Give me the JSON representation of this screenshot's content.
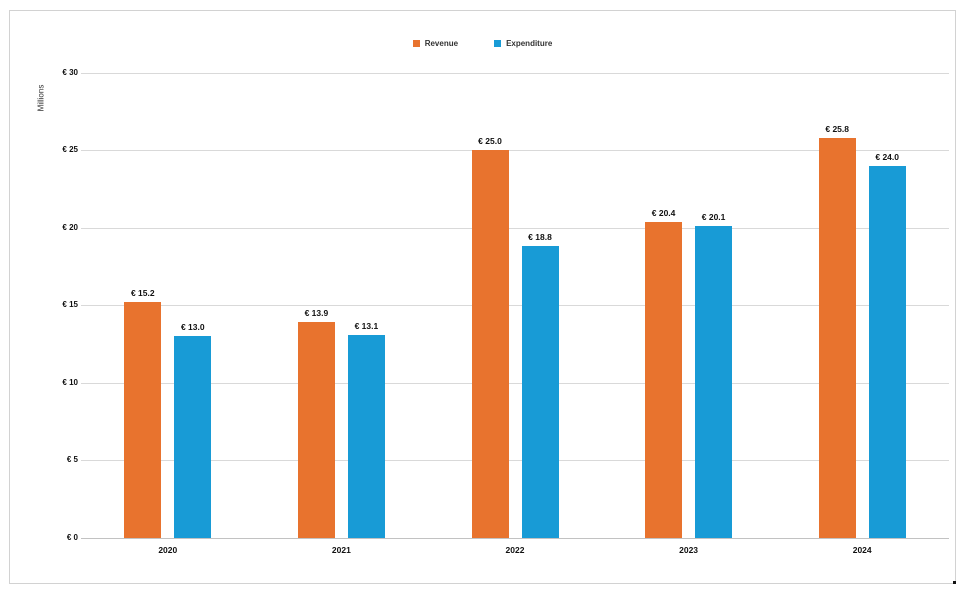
{
  "y_axis": {
    "title": "Millions"
  },
  "chart_data": {
    "type": "bar",
    "title": "",
    "categories": [
      "2020",
      "2021",
      "2022",
      "2023",
      "2024"
    ],
    "series": [
      {
        "name": "Revenue",
        "color": "#e8732e",
        "values": [
          15.2,
          13.9,
          25.0,
          20.4,
          25.8
        ],
        "labels": [
          "€ 15.2",
          "€ 13.9",
          "€ 25.0",
          "€ 20.4",
          "€ 25.8"
        ]
      },
      {
        "name": "Expenditure",
        "color": "#189bd6",
        "values": [
          13.0,
          13.1,
          18.8,
          20.1,
          24.0
        ],
        "labels": [
          "€ 13.0",
          "€ 13.1",
          "€ 18.8",
          "€ 20.1",
          "€ 24.0"
        ]
      }
    ],
    "xlabel": "",
    "ylabel": "Millions",
    "ylim": [
      0,
      30
    ],
    "ytick_step": 5,
    "ytick_labels": [
      "€ 0",
      "€ 5",
      "€ 10",
      "€ 15",
      "€ 20",
      "€ 25",
      "€ 30"
    ],
    "currency_prefix": "€ ",
    "grid": true,
    "legend_position": "top-center"
  }
}
